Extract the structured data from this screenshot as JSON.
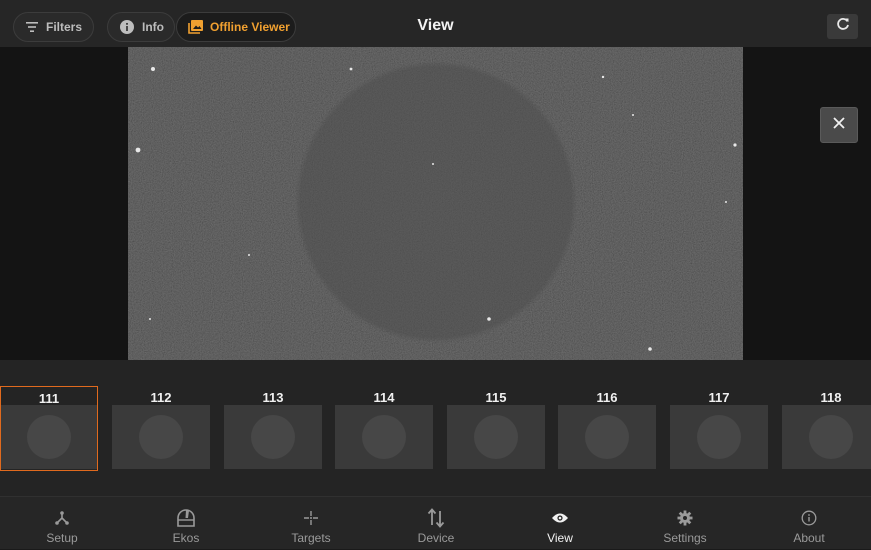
{
  "header": {
    "title": "View",
    "filters_label": "Filters",
    "info_label": "Info",
    "offline_viewer_label": "Offline Viewer"
  },
  "thumbnails": [
    {
      "label": "111",
      "selected": true
    },
    {
      "label": "112",
      "selected": false
    },
    {
      "label": "113",
      "selected": false
    },
    {
      "label": "114",
      "selected": false
    },
    {
      "label": "115",
      "selected": false
    },
    {
      "label": "116",
      "selected": false
    },
    {
      "label": "117",
      "selected": false
    },
    {
      "label": "118",
      "selected": false
    }
  ],
  "nav": {
    "setup": "Setup",
    "ekos": "Ekos",
    "targets": "Targets",
    "device": "Device",
    "view": "View",
    "settings": "Settings",
    "about": "About",
    "active": "view"
  },
  "colors": {
    "accent": "#f0a030",
    "selection_border": "#e06a1e"
  }
}
